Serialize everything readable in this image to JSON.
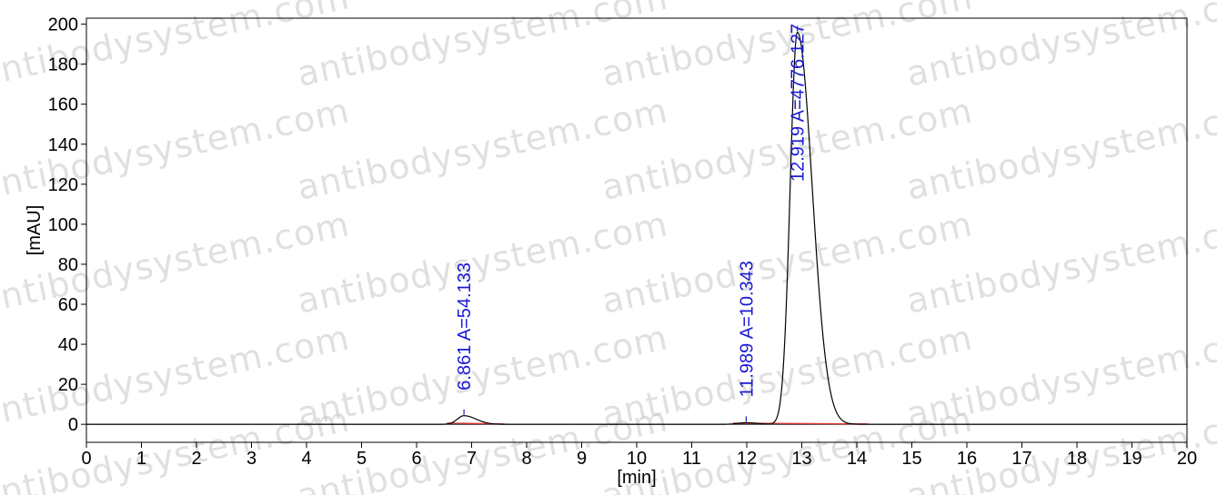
{
  "watermark": "antibodysystem.com",
  "chart_data": {
    "type": "line",
    "title": "",
    "xlabel": "[min]",
    "ylabel": "[mAU]",
    "xlim": [
      0,
      20
    ],
    "ylim": [
      -9,
      203
    ],
    "x_ticks": [
      0,
      1,
      2,
      3,
      4,
      5,
      6,
      7,
      8,
      9,
      10,
      11,
      12,
      13,
      14,
      15,
      16,
      17,
      18,
      19,
      20
    ],
    "y_ticks": [
      0,
      20,
      40,
      60,
      80,
      100,
      120,
      140,
      160,
      180,
      200
    ],
    "grid": false,
    "legend": "none",
    "colors": {
      "trace": "#000000",
      "baseline": "#e03030",
      "labels": "#1a1ad6",
      "zero_line": "#000000"
    },
    "peaks": [
      {
        "rt": 6.861,
        "area": 54.133,
        "height": 4.3,
        "sigma_left": 0.12,
        "sigma_right": 0.22,
        "label": "6.861 A=54.133"
      },
      {
        "rt": 11.989,
        "area": 10.343,
        "height": 0.8,
        "sigma_left": 0.15,
        "sigma_right": 0.2,
        "label": "11.989 A=10.343"
      },
      {
        "rt": 12.919,
        "area": 4776.127,
        "height": 196,
        "sigma_left": 0.13,
        "sigma_right": 0.27,
        "label": "12.919 A=4776.127"
      }
    ],
    "baseline_segments": [
      {
        "x_start": 6.55,
        "x_end": 7.6
      },
      {
        "x_start": 11.75,
        "x_end": 14.2
      }
    ]
  }
}
